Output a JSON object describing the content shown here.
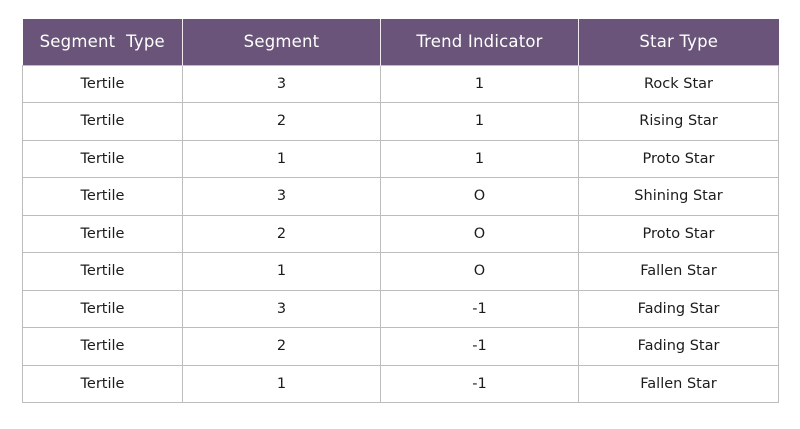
{
  "table": {
    "headers": [
      "Segment  Type",
      "Segment",
      "Trend Indicator",
      "Star Type"
    ],
    "rows": [
      [
        "Tertile",
        "3",
        "1",
        "Rock Star"
      ],
      [
        "Tertile",
        "2",
        "1",
        "Rising Star"
      ],
      [
        "Tertile",
        "1",
        "1",
        "Proto Star"
      ],
      [
        "Tertile",
        "3",
        "O",
        "Shining Star"
      ],
      [
        "Tertile",
        "2",
        "O",
        "Proto Star"
      ],
      [
        "Tertile",
        "1",
        "O",
        "Fallen Star"
      ],
      [
        "Tertile",
        "3",
        "-1",
        "Fading Star"
      ],
      [
        "Tertile",
        "2",
        "-1",
        "Fading Star"
      ],
      [
        "Tertile",
        "1",
        "-1",
        "Fallen Star"
      ]
    ]
  },
  "colors": {
    "header_background": "#6a5479",
    "header_text": "#ffffff",
    "border": "#bdbdbd"
  }
}
